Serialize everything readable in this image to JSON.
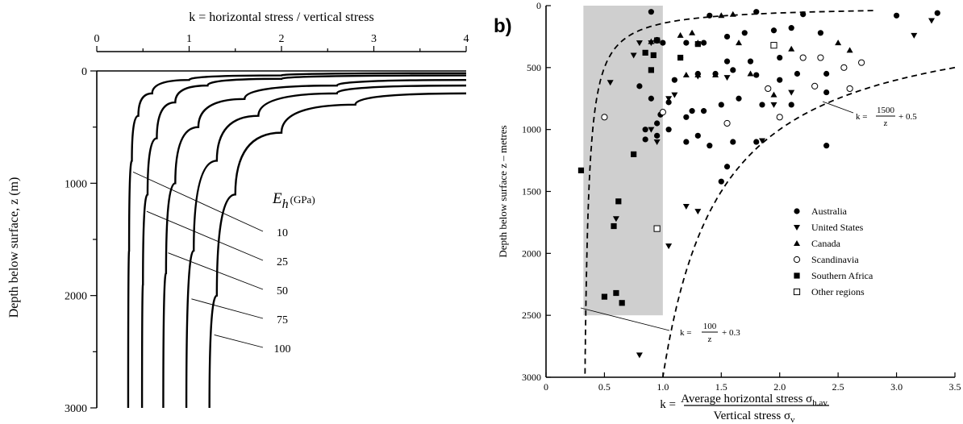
{
  "chart_data": [
    {
      "type": "line",
      "title": "",
      "xlabel": "k = horizontal stress / vertical stress",
      "ylabel": "Depth below surface, z (m)",
      "xlim": [
        0,
        4
      ],
      "ylim": [
        3000,
        0
      ],
      "x_ticks": [
        "0",
        "1",
        "2",
        "3",
        "4"
      ],
      "y_ticks": [
        "0",
        "1000",
        "2000",
        "3000"
      ],
      "legend_title": "E",
      "legend_title_sub": "h",
      "legend_title_unit": "(GPa)",
      "series": [
        {
          "name": "10",
          "x": [
            4.0,
            2.0,
            1.0,
            0.6,
            0.45,
            0.38,
            0.35,
            0.34
          ],
          "y": [
            20,
            40,
            80,
            200,
            400,
            800,
            1600,
            3000
          ]
        },
        {
          "name": "25",
          "x": [
            4.0,
            2.0,
            1.2,
            0.85,
            0.65,
            0.55,
            0.5,
            0.49
          ],
          "y": [
            40,
            70,
            130,
            280,
            600,
            1100,
            1900,
            3000
          ]
        },
        {
          "name": "50",
          "x": [
            4.0,
            2.6,
            1.6,
            1.1,
            0.85,
            0.75,
            0.72
          ],
          "y": [
            80,
            130,
            250,
            500,
            1000,
            1800,
            3000
          ]
        },
        {
          "name": "75",
          "x": [
            4.0,
            2.6,
            1.75,
            1.3,
            1.05,
            0.97
          ],
          "y": [
            130,
            200,
            400,
            800,
            1600,
            3000
          ]
        },
        {
          "name": "100",
          "x": [
            4.0,
            2.8,
            2.0,
            1.5,
            1.3,
            1.22
          ],
          "y": [
            200,
            300,
            550,
            1100,
            2000,
            3000
          ]
        }
      ]
    },
    {
      "type": "scatter",
      "panel_label": "b)",
      "title": "",
      "xlabel_prefix": "k =",
      "xlabel_numerator": "Average horizontal stress σ",
      "xlabel_numerator_sub": "h.av",
      "xlabel_denominator": "Vertical stress σ",
      "xlabel_denominator_sub": "v",
      "ylabel": "Depth below surface z – metres",
      "xlim": [
        0,
        3.5
      ],
      "ylim": [
        3000,
        0
      ],
      "x_ticks": [
        "0",
        "0.5",
        "1.0",
        "1.5",
        "2.0",
        "2.5",
        "3.0",
        "3.5"
      ],
      "y_ticks": [
        "0",
        "500",
        "1000",
        "1500",
        "2000",
        "2500",
        "3000"
      ],
      "shaded_band": {
        "x": [
          0.3,
          1.0
        ],
        "y": [
          0,
          2500
        ]
      },
      "bound_lower": {
        "k": "k =",
        "num": "100",
        "den": "z",
        "const": "+ 0.3"
      },
      "bound_upper": {
        "k": "k =",
        "num": "1500",
        "den": "z",
        "const": "+ 0.5"
      },
      "legend": [
        "Australia",
        "United States",
        "Canada",
        "Scandinavia",
        "Southern Africa",
        "Other regions"
      ],
      "series": [
        {
          "name": "Australia",
          "points": [
            [
              0.9,
              50
            ],
            [
              1.4,
              80
            ],
            [
              1.8,
              50
            ],
            [
              2.2,
              70
            ],
            [
              3.0,
              80
            ],
            [
              3.35,
              60
            ],
            [
              1.0,
              300
            ],
            [
              1.2,
              300
            ],
            [
              1.35,
              300
            ],
            [
              1.55,
              250
            ],
            [
              1.7,
              220
            ],
            [
              1.95,
              200
            ],
            [
              2.1,
              180
            ],
            [
              2.35,
              220
            ],
            [
              1.15,
              420
            ],
            [
              1.55,
              450
            ],
            [
              1.75,
              450
            ],
            [
              2.0,
              420
            ],
            [
              2.2,
              420
            ],
            [
              1.1,
              600
            ],
            [
              1.3,
              550
            ],
            [
              1.45,
              550
            ],
            [
              1.6,
              520
            ],
            [
              1.8,
              560
            ],
            [
              2.0,
              600
            ],
            [
              2.15,
              550
            ],
            [
              2.4,
              550
            ],
            [
              0.8,
              650
            ],
            [
              0.9,
              750
            ],
            [
              1.05,
              780
            ],
            [
              1.25,
              850
            ],
            [
              1.35,
              850
            ],
            [
              1.5,
              800
            ],
            [
              1.65,
              750
            ],
            [
              1.85,
              800
            ],
            [
              2.1,
              800
            ],
            [
              2.4,
              700
            ],
            [
              0.85,
              1000
            ],
            [
              0.95,
              1050
            ],
            [
              1.05,
              1000
            ],
            [
              1.2,
              1100
            ],
            [
              1.3,
              1050
            ],
            [
              1.4,
              1130
            ],
            [
              1.6,
              1100
            ],
            [
              1.8,
              1100
            ],
            [
              2.4,
              1130
            ],
            [
              1.55,
              1300
            ],
            [
              1.5,
              1420
            ],
            [
              1.2,
              900
            ],
            [
              0.95,
              950
            ],
            [
              0.85,
              1080
            ],
            [
              0.98,
              880
            ]
          ]
        },
        {
          "name": "United States",
          "points": [
            [
              0.55,
              620
            ],
            [
              0.8,
              300
            ],
            [
              0.9,
              300
            ],
            [
              0.75,
              400
            ],
            [
              0.9,
              1000
            ],
            [
              0.95,
              1100
            ],
            [
              1.05,
              750
            ],
            [
              1.2,
              1620
            ],
            [
              1.3,
              1660
            ],
            [
              1.05,
              1940
            ],
            [
              0.6,
              1720
            ],
            [
              0.8,
              2820
            ],
            [
              1.3,
              570
            ],
            [
              1.55,
              580
            ],
            [
              1.85,
              1090
            ],
            [
              1.95,
              800
            ],
            [
              2.1,
              700
            ],
            [
              3.15,
              240
            ],
            [
              3.3,
              120
            ],
            [
              1.1,
              720
            ]
          ]
        },
        {
          "name": "Canada",
          "points": [
            [
              0.9,
              290
            ],
            [
              1.15,
              240
            ],
            [
              1.25,
              220
            ],
            [
              1.3,
              300
            ],
            [
              1.5,
              80
            ],
            [
              1.6,
              70
            ],
            [
              2.5,
              300
            ],
            [
              2.6,
              360
            ],
            [
              1.45,
              560
            ],
            [
              1.3,
              560
            ],
            [
              1.2,
              560
            ],
            [
              1.75,
              550
            ],
            [
              1.95,
              720
            ],
            [
              2.1,
              350
            ],
            [
              1.65,
              300
            ]
          ]
        },
        {
          "name": "Scandinavia",
          "points": [
            [
              0.5,
              900
            ],
            [
              0.95,
              280
            ],
            [
              1.0,
              860
            ],
            [
              1.55,
              950
            ],
            [
              2.0,
              900
            ],
            [
              2.2,
              420
            ],
            [
              2.35,
              420
            ],
            [
              2.55,
              500
            ],
            [
              2.7,
              460
            ],
            [
              2.3,
              650
            ],
            [
              2.6,
              670
            ],
            [
              1.9,
              670
            ]
          ]
        },
        {
          "name": "Southern Africa",
          "points": [
            [
              0.3,
              1330
            ],
            [
              0.5,
              2350
            ],
            [
              0.6,
              2320
            ],
            [
              0.65,
              2400
            ],
            [
              0.62,
              1580
            ],
            [
              0.58,
              1780
            ],
            [
              0.75,
              1200
            ],
            [
              0.92,
              400
            ],
            [
              0.85,
              380
            ],
            [
              0.95,
              280
            ],
            [
              1.15,
              420
            ],
            [
              1.3,
              310
            ],
            [
              0.9,
              520
            ]
          ]
        },
        {
          "name": "Other regions",
          "points": [
            [
              0.95,
              1800
            ],
            [
              1.95,
              320
            ]
          ]
        }
      ]
    }
  ]
}
